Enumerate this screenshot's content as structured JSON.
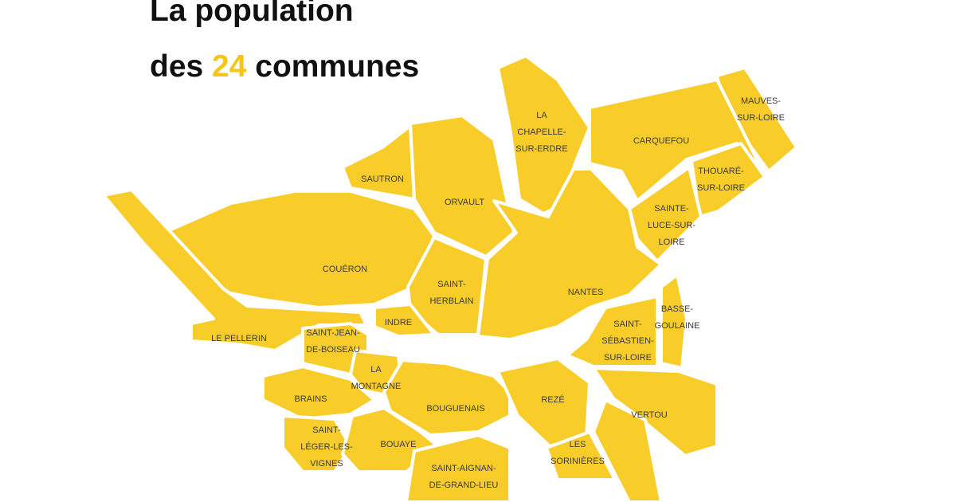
{
  "header": {
    "title_line1": "La population",
    "title_line2": {
      "before": "des",
      "number": "24",
      "after": "communes"
    }
  },
  "communes": [
    {
      "lines": [
        "LA",
        "CHAPELLE-",
        "SUR-ERDRE"
      ]
    },
    {
      "lines": [
        "CARQUEFOU"
      ]
    },
    {
      "lines": [
        "MAUVES-",
        "SUR-LOIRE"
      ]
    },
    {
      "lines": [
        "THOUARÉ-",
        "SUR-LOIRE"
      ]
    },
    {
      "lines": [
        "SAINTE-",
        "LUCE-SUR-",
        "LOIRE"
      ]
    },
    {
      "lines": [
        "SAUTRON"
      ]
    },
    {
      "lines": [
        "ORVAULT"
      ]
    },
    {
      "lines": [
        "COUÉRON"
      ]
    },
    {
      "lines": [
        "SAINT-",
        "HERBLAIN"
      ]
    },
    {
      "lines": [
        "NANTES"
      ]
    },
    {
      "lines": [
        "INDRE"
      ]
    },
    {
      "lines": [
        "LE PELLERIN"
      ]
    },
    {
      "lines": [
        "SAINT-JEAN-",
        "DE-BOISEAU"
      ]
    },
    {
      "lines": [
        "BASSE-",
        "GOULAINE"
      ]
    },
    {
      "lines": [
        "SAINT-",
        "SÉBASTIEN-",
        "SUR-LOIRE"
      ]
    },
    {
      "lines": [
        "LA",
        "MONTAGNE"
      ]
    },
    {
      "lines": [
        "BRAINS"
      ]
    },
    {
      "lines": [
        "BOUGUENAIS"
      ]
    },
    {
      "lines": [
        "REZÉ"
      ]
    },
    {
      "lines": [
        "VERTOU"
      ]
    },
    {
      "lines": [
        "SAINT-",
        "LÉGER-LES-",
        "VIGNES"
      ]
    },
    {
      "lines": [
        "BOUAYE"
      ]
    },
    {
      "lines": [
        "LES",
        "SORINIÈRES"
      ]
    },
    {
      "lines": [
        "SAINT-AIGNAN-",
        "DE-GRAND-LIEU"
      ]
    }
  ]
}
